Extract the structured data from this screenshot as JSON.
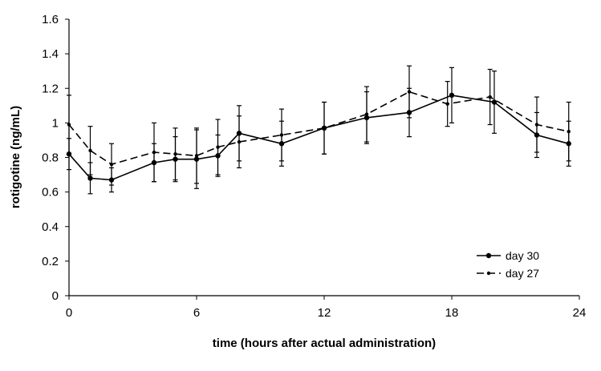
{
  "chart_data": {
    "type": "line",
    "title": "",
    "xlabel": "time (hours after actual  administration)",
    "ylabel": "rotigotine (ng/mL)",
    "xlim": [
      0,
      24
    ],
    "ylim": [
      0,
      1.6
    ],
    "xticks": [
      0,
      6,
      12,
      18,
      24
    ],
    "yticks": [
      0,
      0.2,
      0.4,
      0.6,
      0.8,
      1,
      1.2,
      1.4,
      1.6
    ],
    "xtick_labels": [
      "0",
      "6",
      "12",
      "18",
      "24"
    ],
    "ytick_labels": [
      "0",
      "0.2",
      "0.4",
      "0.6",
      "0.8",
      "1",
      "1.2",
      "1.4",
      "1.6"
    ],
    "grid": false,
    "legend_position": "bottom-right",
    "series": [
      {
        "name": "day 30",
        "line_style": "solid",
        "marker": "circle",
        "color": "#000000",
        "x": [
          0,
          1,
          2,
          4,
          5,
          6,
          7,
          8,
          10,
          12,
          14,
          16,
          18,
          20,
          22,
          23.5
        ],
        "y": [
          0.82,
          0.68,
          0.67,
          0.77,
          0.79,
          0.79,
          0.81,
          0.94,
          0.88,
          0.97,
          1.03,
          1.06,
          1.16,
          1.12,
          0.93,
          0.88
        ],
        "err": [
          0.09,
          0.09,
          0.07,
          0.11,
          0.13,
          0.17,
          0.12,
          0.16,
          0.13,
          0.15,
          0.15,
          0.14,
          0.16,
          0.18,
          0.13,
          0.13
        ]
      },
      {
        "name": "day 27",
        "line_style": "dashed",
        "marker": "small-circle",
        "color": "#000000",
        "x": [
          0,
          1,
          2,
          4,
          5,
          6,
          7,
          8,
          10,
          12,
          14,
          16,
          17.8,
          19.8,
          22,
          23.5
        ],
        "y": [
          0.99,
          0.84,
          0.76,
          0.83,
          0.82,
          0.81,
          0.86,
          0.89,
          0.93,
          0.97,
          1.05,
          1.18,
          1.11,
          1.15,
          0.99,
          0.95
        ],
        "err": [
          0.17,
          0.14,
          0.12,
          0.17,
          0.15,
          0.16,
          0.16,
          0.15,
          0.15,
          0.15,
          0.16,
          0.15,
          0.13,
          0.16,
          0.16,
          0.17
        ]
      }
    ]
  }
}
